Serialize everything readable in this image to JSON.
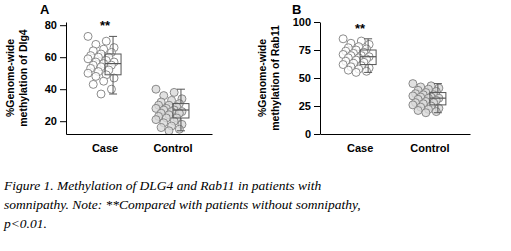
{
  "chart_data": [
    {
      "type": "box",
      "title": "A",
      "ylabel": "%Genome-wide\nmethylation of Dlg4",
      "categories": [
        "Case",
        "Control"
      ],
      "values": [
        [
          73,
          70,
          68,
          66,
          65,
          64,
          63,
          62,
          61,
          60,
          60,
          59,
          58,
          57,
          57,
          56,
          55,
          55,
          54,
          53,
          52,
          51,
          50,
          49,
          48,
          47,
          45,
          43,
          40,
          37
        ],
        [
          40,
          38,
          36,
          34,
          33,
          32,
          31,
          30,
          30,
          29,
          28,
          28,
          27,
          27,
          26,
          26,
          25,
          25,
          24,
          23,
          22,
          22,
          21,
          20,
          19,
          18,
          17,
          16,
          15,
          14
        ]
      ],
      "boxes": [
        {
          "min": 37,
          "q1": 49,
          "median": 56,
          "q3": 62,
          "max": 73
        },
        {
          "min": 14,
          "q1": 22,
          "median": 27,
          "q3": 31,
          "max": 40
        }
      ],
      "annotations": [
        {
          "text": "**",
          "x": "Case"
        }
      ],
      "color": "#7f7f7f",
      "ylim": [
        12,
        82
      ],
      "yticks": [
        20,
        40,
        60,
        80
      ]
    },
    {
      "type": "box",
      "title": "B",
      "ylabel": "%Genome-wide\nmethylation of Rab11",
      "categories": [
        "Case",
        "Control"
      ],
      "values": [
        [
          85,
          83,
          81,
          80,
          78,
          77,
          76,
          75,
          74,
          73,
          72,
          71,
          70,
          70,
          69,
          68,
          68,
          67,
          66,
          65,
          64,
          63,
          62,
          61,
          60,
          59,
          58,
          57,
          56,
          55
        ],
        [
          45,
          43,
          42,
          41,
          40,
          39,
          38,
          37,
          36,
          35,
          35,
          34,
          33,
          33,
          32,
          32,
          31,
          30,
          29,
          28,
          28,
          27,
          26,
          25,
          24,
          23,
          22,
          21,
          20,
          19
        ]
      ],
      "boxes": [
        {
          "min": 55,
          "q1": 62,
          "median": 69,
          "q3": 75,
          "max": 85
        },
        {
          "min": 19,
          "q1": 26,
          "median": 32,
          "q3": 37,
          "max": 45
        }
      ],
      "annotations": [
        {
          "text": "**",
          "x": "Case"
        }
      ],
      "color": "#7f7f7f",
      "ylim": [
        0,
        100
      ],
      "yticks": [
        0,
        25,
        50,
        75,
        100
      ]
    }
  ],
  "caption": [
    "Figure 1. Methylation of DLG4 and Rab11 in patients with",
    "somnipathy. Note: **Compared with patients without somnipathy,",
    "p<0.01."
  ]
}
